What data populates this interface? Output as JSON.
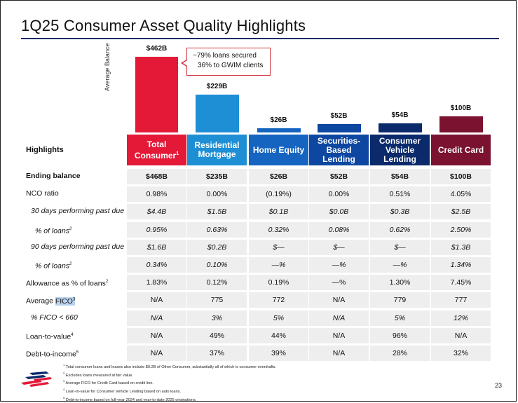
{
  "title": "1Q25 Consumer Asset Quality Highlights",
  "chart": {
    "y_axis_label": "Average Balance",
    "callout_line1": "~79% loans secured",
    "callout_line2": "36% to GWIM clients",
    "bar_labels": [
      "$462B",
      "$229B",
      "$26B",
      "$52B",
      "$54B",
      "$100B"
    ]
  },
  "chart_data": {
    "type": "bar",
    "ylabel": "Average Balance",
    "categories": [
      "Total Consumer",
      "Residential Mortgage",
      "Home Equity",
      "Securities-Based Lending",
      "Consumer Vehicle Lending",
      "Credit Card"
    ],
    "values": [
      462,
      229,
      26,
      52,
      54,
      100
    ],
    "unit": "$B",
    "colors": [
      "#e31937",
      "#1e8fd5",
      "#1565c0",
      "#0d47a1",
      "#0a2a6b",
      "#7a1230"
    ]
  },
  "table": {
    "highlights_label": "Highlights",
    "columns": [
      {
        "line1": "Total",
        "line2": "Consumer",
        "sup": "1",
        "color": "#e31937"
      },
      {
        "line1": "Residential",
        "line2": "Mortgage",
        "sup": "",
        "color": "#1e8fd5"
      },
      {
        "line1": "Home Equity",
        "line2": "",
        "sup": "",
        "color": "#1565c0"
      },
      {
        "line1": "Securities-",
        "line2": "Based",
        "line3": "Lending",
        "sup": "",
        "color": "#0d47a1"
      },
      {
        "line1": "Consumer",
        "line2": "Vehicle",
        "line3": "Lending",
        "sup": "",
        "color": "#0a2a6b"
      },
      {
        "line1": "Credit Card",
        "line2": "",
        "sup": "",
        "color": "#7a1230"
      }
    ],
    "rows": [
      {
        "label": "Ending balance",
        "style": "bold",
        "values": [
          "$468B",
          "$235B",
          "$26B",
          "$52B",
          "$54B",
          "$100B"
        ]
      },
      {
        "label": "NCO ratio",
        "style": "normal",
        "values": [
          "0.98%",
          "0.00%",
          "(0.19%)",
          "0.00%",
          "0.51%",
          "4.05%"
        ]
      },
      {
        "label": "30 days performing past due",
        "style": "italic",
        "values": [
          "$4.4B",
          "$1.5B",
          "$0.1B",
          "$0.0B",
          "$0.3B",
          "$2.5B"
        ]
      },
      {
        "label": "% of loans",
        "sup": "2",
        "style": "italic",
        "values": [
          "0.95%",
          "0.63%",
          "0.32%",
          "0.08%",
          "0.62%",
          "2.50%"
        ]
      },
      {
        "label": "90 days performing past due",
        "style": "italic",
        "values": [
          "$1.6B",
          "$0.2B",
          "$—",
          "$—",
          "$—",
          "$1.3B"
        ]
      },
      {
        "label": "% of loans",
        "sup": "2",
        "style": "italic",
        "values": [
          "0.34%",
          "0.10%",
          "—%",
          "—%",
          "—%",
          "1.34%"
        ]
      },
      {
        "label": "Allowance as % of loans",
        "sup": "2",
        "style": "normal",
        "values": [
          "1.83%",
          "0.12%",
          "0.19%",
          "—%",
          "1.30%",
          "7.45%"
        ]
      },
      {
        "label": "Average FICO",
        "sup": "3",
        "style": "normal",
        "values": [
          "N/A",
          "775",
          "772",
          "N/A",
          "779",
          "777"
        ]
      },
      {
        "label": "% FICO < 660",
        "style": "italic",
        "values": [
          "N/A",
          "3%",
          "5%",
          "N/A",
          "5%",
          "12%"
        ]
      },
      {
        "label": "Loan-to-value",
        "sup": "4",
        "style": "normal",
        "values": [
          "N/A",
          "49%",
          "44%",
          "N/A",
          "96%",
          "N/A"
        ]
      },
      {
        "label": "Debt-to-income",
        "sup": "5",
        "style": "normal",
        "values": [
          "N/A",
          "37%",
          "39%",
          "N/A",
          "28%",
          "32%"
        ]
      }
    ]
  },
  "footnotes": [
    {
      "n": "1",
      "text": "Total consumer loans and leases also include $0.2B of Other Consumer, substantially all of which is consumer overdrafts."
    },
    {
      "n": "2",
      "text": "Excludes loans measured at fair value."
    },
    {
      "n": "3",
      "text": "Average FICO for Credit Card based on credit line."
    },
    {
      "n": "4",
      "text": "Loan-to-value for Consumer Vehicle Lending based on auto loans."
    },
    {
      "n": "5",
      "text": "Debt-to-income based on full-year 2024 and year-to-date 2025 originations."
    }
  ],
  "page_number": "23"
}
